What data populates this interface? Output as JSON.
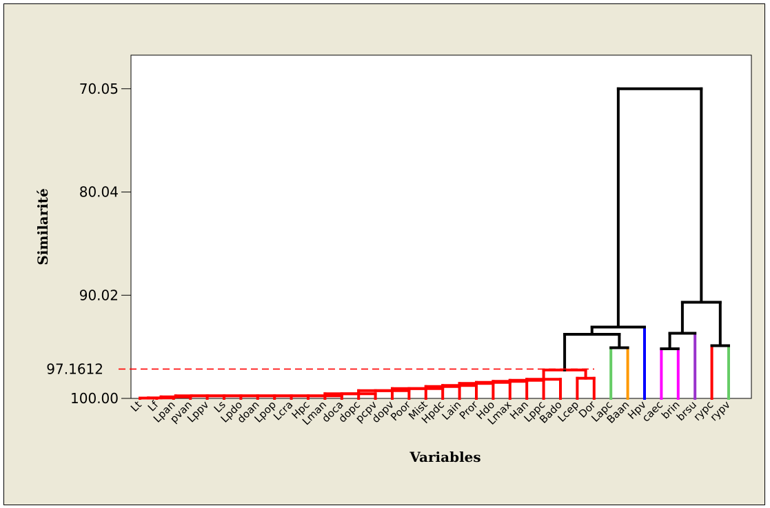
{
  "chart_data": {
    "type": "dendrogram",
    "xlabel": "Variables",
    "ylabel": "Similarité",
    "y_ticks": [
      70.05,
      80.04,
      90.02,
      100.0
    ],
    "y_tick_labels": [
      "70.05",
      "80.04",
      "90.02",
      "100.00"
    ],
    "ylim": [
      66.8,
      100
    ],
    "cut_line": {
      "value": 97.1612,
      "label": "97.1612",
      "color": "#ff0000",
      "style": "dashed"
    },
    "leaves": [
      "Lt",
      "Lf",
      "Lpan",
      "pvan",
      "Lppv",
      "Ls",
      "Lpdo",
      "doan",
      "Lpop",
      "Lcra",
      "Hpc",
      "Lman",
      "doca",
      "dopc",
      "pcpv",
      "dopv",
      "Poor",
      "Mist",
      "Hpdc",
      "Lain",
      "Pror",
      "Hdo",
      "Lmax",
      "Han",
      "Lppc",
      "Bado",
      "Lcep",
      "Dor",
      "Lapc",
      "Baan",
      "Hpv",
      "caec",
      "brin",
      "brsu",
      "rypc",
      "rypv"
    ],
    "merges": [
      {
        "a": 0,
        "b": 1,
        "sim": 99.97,
        "color": "#ff0000"
      },
      {
        "a": 2,
        "b": 36,
        "sim": 99.95,
        "color": "#ff0000"
      },
      {
        "a": 3,
        "b": 37,
        "sim": 99.85,
        "color": "#ff0000"
      },
      {
        "a": 4,
        "b": 38,
        "sim": 99.75,
        "color": "#ff0000"
      },
      {
        "a": 5,
        "b": 39,
        "sim": 99.75,
        "color": "#ff0000"
      },
      {
        "a": 6,
        "b": 40,
        "sim": 99.75,
        "color": "#ff0000"
      },
      {
        "a": 7,
        "b": 41,
        "sim": 99.75,
        "color": "#ff0000"
      },
      {
        "a": 8,
        "b": 42,
        "sim": 99.75,
        "color": "#ff0000"
      },
      {
        "a": 9,
        "b": 43,
        "sim": 99.75,
        "color": "#ff0000"
      },
      {
        "a": 10,
        "b": 44,
        "sim": 99.75,
        "color": "#ff0000"
      },
      {
        "a": 11,
        "b": 45,
        "sim": 99.75,
        "color": "#ff0000"
      },
      {
        "a": 12,
        "b": 46,
        "sim": 99.75,
        "color": "#ff0000"
      },
      {
        "a": 13,
        "b": 47,
        "sim": 99.55,
        "color": "#ff0000"
      },
      {
        "a": 14,
        "b": 48,
        "sim": 99.55,
        "color": "#ff0000"
      },
      {
        "a": 15,
        "b": 49,
        "sim": 99.25,
        "color": "#ff0000"
      },
      {
        "a": 16,
        "b": 50,
        "sim": 99.25,
        "color": "#ff0000"
      },
      {
        "a": 17,
        "b": 51,
        "sim": 99.05,
        "color": "#ff0000"
      },
      {
        "a": 18,
        "b": 52,
        "sim": 99.05,
        "color": "#ff0000"
      },
      {
        "a": 19,
        "b": 53,
        "sim": 98.85,
        "color": "#ff0000"
      },
      {
        "a": 20,
        "b": 54,
        "sim": 98.75,
        "color": "#ff0000"
      },
      {
        "a": 21,
        "b": 55,
        "sim": 98.55,
        "color": "#ff0000"
      },
      {
        "a": 22,
        "b": 56,
        "sim": 98.45,
        "color": "#ff0000"
      },
      {
        "a": 23,
        "b": 57,
        "sim": 98.35,
        "color": "#ff0000"
      },
      {
        "a": 24,
        "b": 58,
        "sim": 98.25,
        "color": "#ff0000"
      },
      {
        "a": 25,
        "b": 59,
        "sim": 98.15,
        "color": "#ff0000"
      },
      {
        "a": 26,
        "b": 27,
        "sim": 98.05,
        "color": "#ff0000"
      },
      {
        "a": 60,
        "b": 61,
        "sim": 97.25,
        "color": "#ff0000"
      },
      {
        "a": 28,
        "b": 29,
        "sim": 95.1,
        "color": "#000000"
      },
      {
        "a": 62,
        "b": 63,
        "sim": 93.8,
        "color": "#000000"
      },
      {
        "a": 64,
        "b": 30,
        "sim": 93.1,
        "color": "#000000"
      },
      {
        "a": 31,
        "b": 32,
        "sim": 95.2,
        "color": "#000000"
      },
      {
        "a": 66,
        "b": 33,
        "sim": 93.7,
        "color": "#000000"
      },
      {
        "a": 34,
        "b": 35,
        "sim": 94.9,
        "color": "#000000"
      },
      {
        "a": 67,
        "b": 68,
        "sim": 90.7,
        "color": "#000000"
      },
      {
        "a": 65,
        "b": 69,
        "sim": 70.05,
        "color": "#000000"
      }
    ],
    "leaf_colors": [
      {
        "leaf": 28,
        "color": "#66cc66"
      },
      {
        "leaf": 29,
        "color": "#ff9900"
      },
      {
        "leaf": 30,
        "color": "#0000ff"
      },
      {
        "leaf": 31,
        "color": "#ff00ff"
      },
      {
        "leaf": 32,
        "color": "#ff00ff"
      },
      {
        "leaf": 33,
        "color": "#9933cc"
      },
      {
        "leaf": 34,
        "color": "#ff0000"
      },
      {
        "leaf": 35,
        "color": "#66cc66"
      }
    ]
  }
}
